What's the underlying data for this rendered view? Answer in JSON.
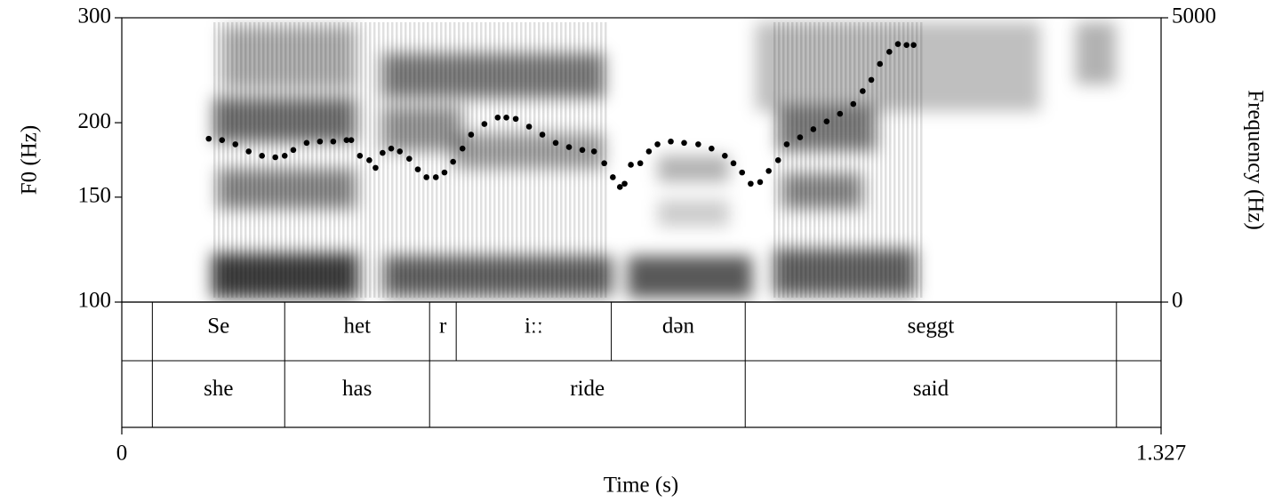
{
  "chart_data": {
    "type": "pitch",
    "ylabel": "F0 (Hz)",
    "y2label": "Frequency (Hz)",
    "xlabel": "Time (s)",
    "xlim": [
      0,
      1.327
    ],
    "xticks": [
      0,
      1.327
    ],
    "ylim": [
      100,
      300
    ],
    "yticks": [
      100,
      150,
      200,
      300
    ],
    "yscale": "log",
    "y2lim": [
      0,
      5000
    ],
    "y2ticks": [
      0,
      5000
    ],
    "series": [
      {
        "color": "#000000",
        "x": [
          0.111,
          0.128,
          0.145,
          0.162,
          0.179,
          0.196,
          0.208,
          0.219,
          0.236,
          0.253,
          0.27,
          0.287,
          0.293,
          0.304,
          0.316,
          0.324,
          0.333,
          0.344,
          0.355,
          0.367,
          0.378,
          0.389,
          0.401,
          0.412,
          0.423,
          0.435,
          0.446,
          0.463,
          0.48,
          0.491,
          0.503,
          0.52,
          0.537,
          0.554,
          0.571,
          0.588,
          0.603,
          0.616,
          0.627,
          0.636,
          0.642,
          0.65,
          0.662,
          0.673,
          0.684,
          0.701,
          0.718,
          0.736,
          0.753,
          0.77,
          0.781,
          0.792,
          0.803,
          0.815,
          0.826,
          0.838,
          0.849,
          0.866,
          0.883,
          0.9,
          0.917,
          0.934,
          0.946,
          0.957,
          0.968,
          0.98,
          0.991,
          1.002,
          1.011
        ],
        "values": [
          188,
          187,
          184,
          179,
          176,
          175,
          176,
          180,
          185,
          186,
          186,
          187,
          187,
          176,
          173,
          168,
          178,
          181,
          179,
          174,
          167,
          162,
          162,
          165,
          172,
          181,
          191,
          199,
          204,
          204,
          203,
          197,
          191,
          185,
          182,
          180,
          179,
          171,
          162,
          156,
          158,
          170,
          171,
          179,
          184,
          186,
          185,
          184,
          181,
          176,
          171,
          165,
          158,
          159,
          166,
          173,
          184,
          189,
          195,
          201,
          207,
          215,
          226,
          236,
          251,
          263,
          271,
          270,
          270
        ]
      }
    ],
    "tiers": [
      {
        "boundaries": [
          0,
          0.039,
          0.208,
          0.393,
          0.427,
          0.625,
          0.796,
          1.27,
          1.327
        ],
        "labels": [
          null,
          "Se",
          "het",
          "r",
          "iːː",
          "dən",
          "seggt",
          null
        ]
      },
      {
        "boundaries": [
          0,
          0.039,
          0.208,
          0.393,
          0.796,
          1.27,
          1.327
        ],
        "labels": [
          null,
          "she",
          "has",
          "ride",
          "said",
          null
        ]
      }
    ]
  }
}
